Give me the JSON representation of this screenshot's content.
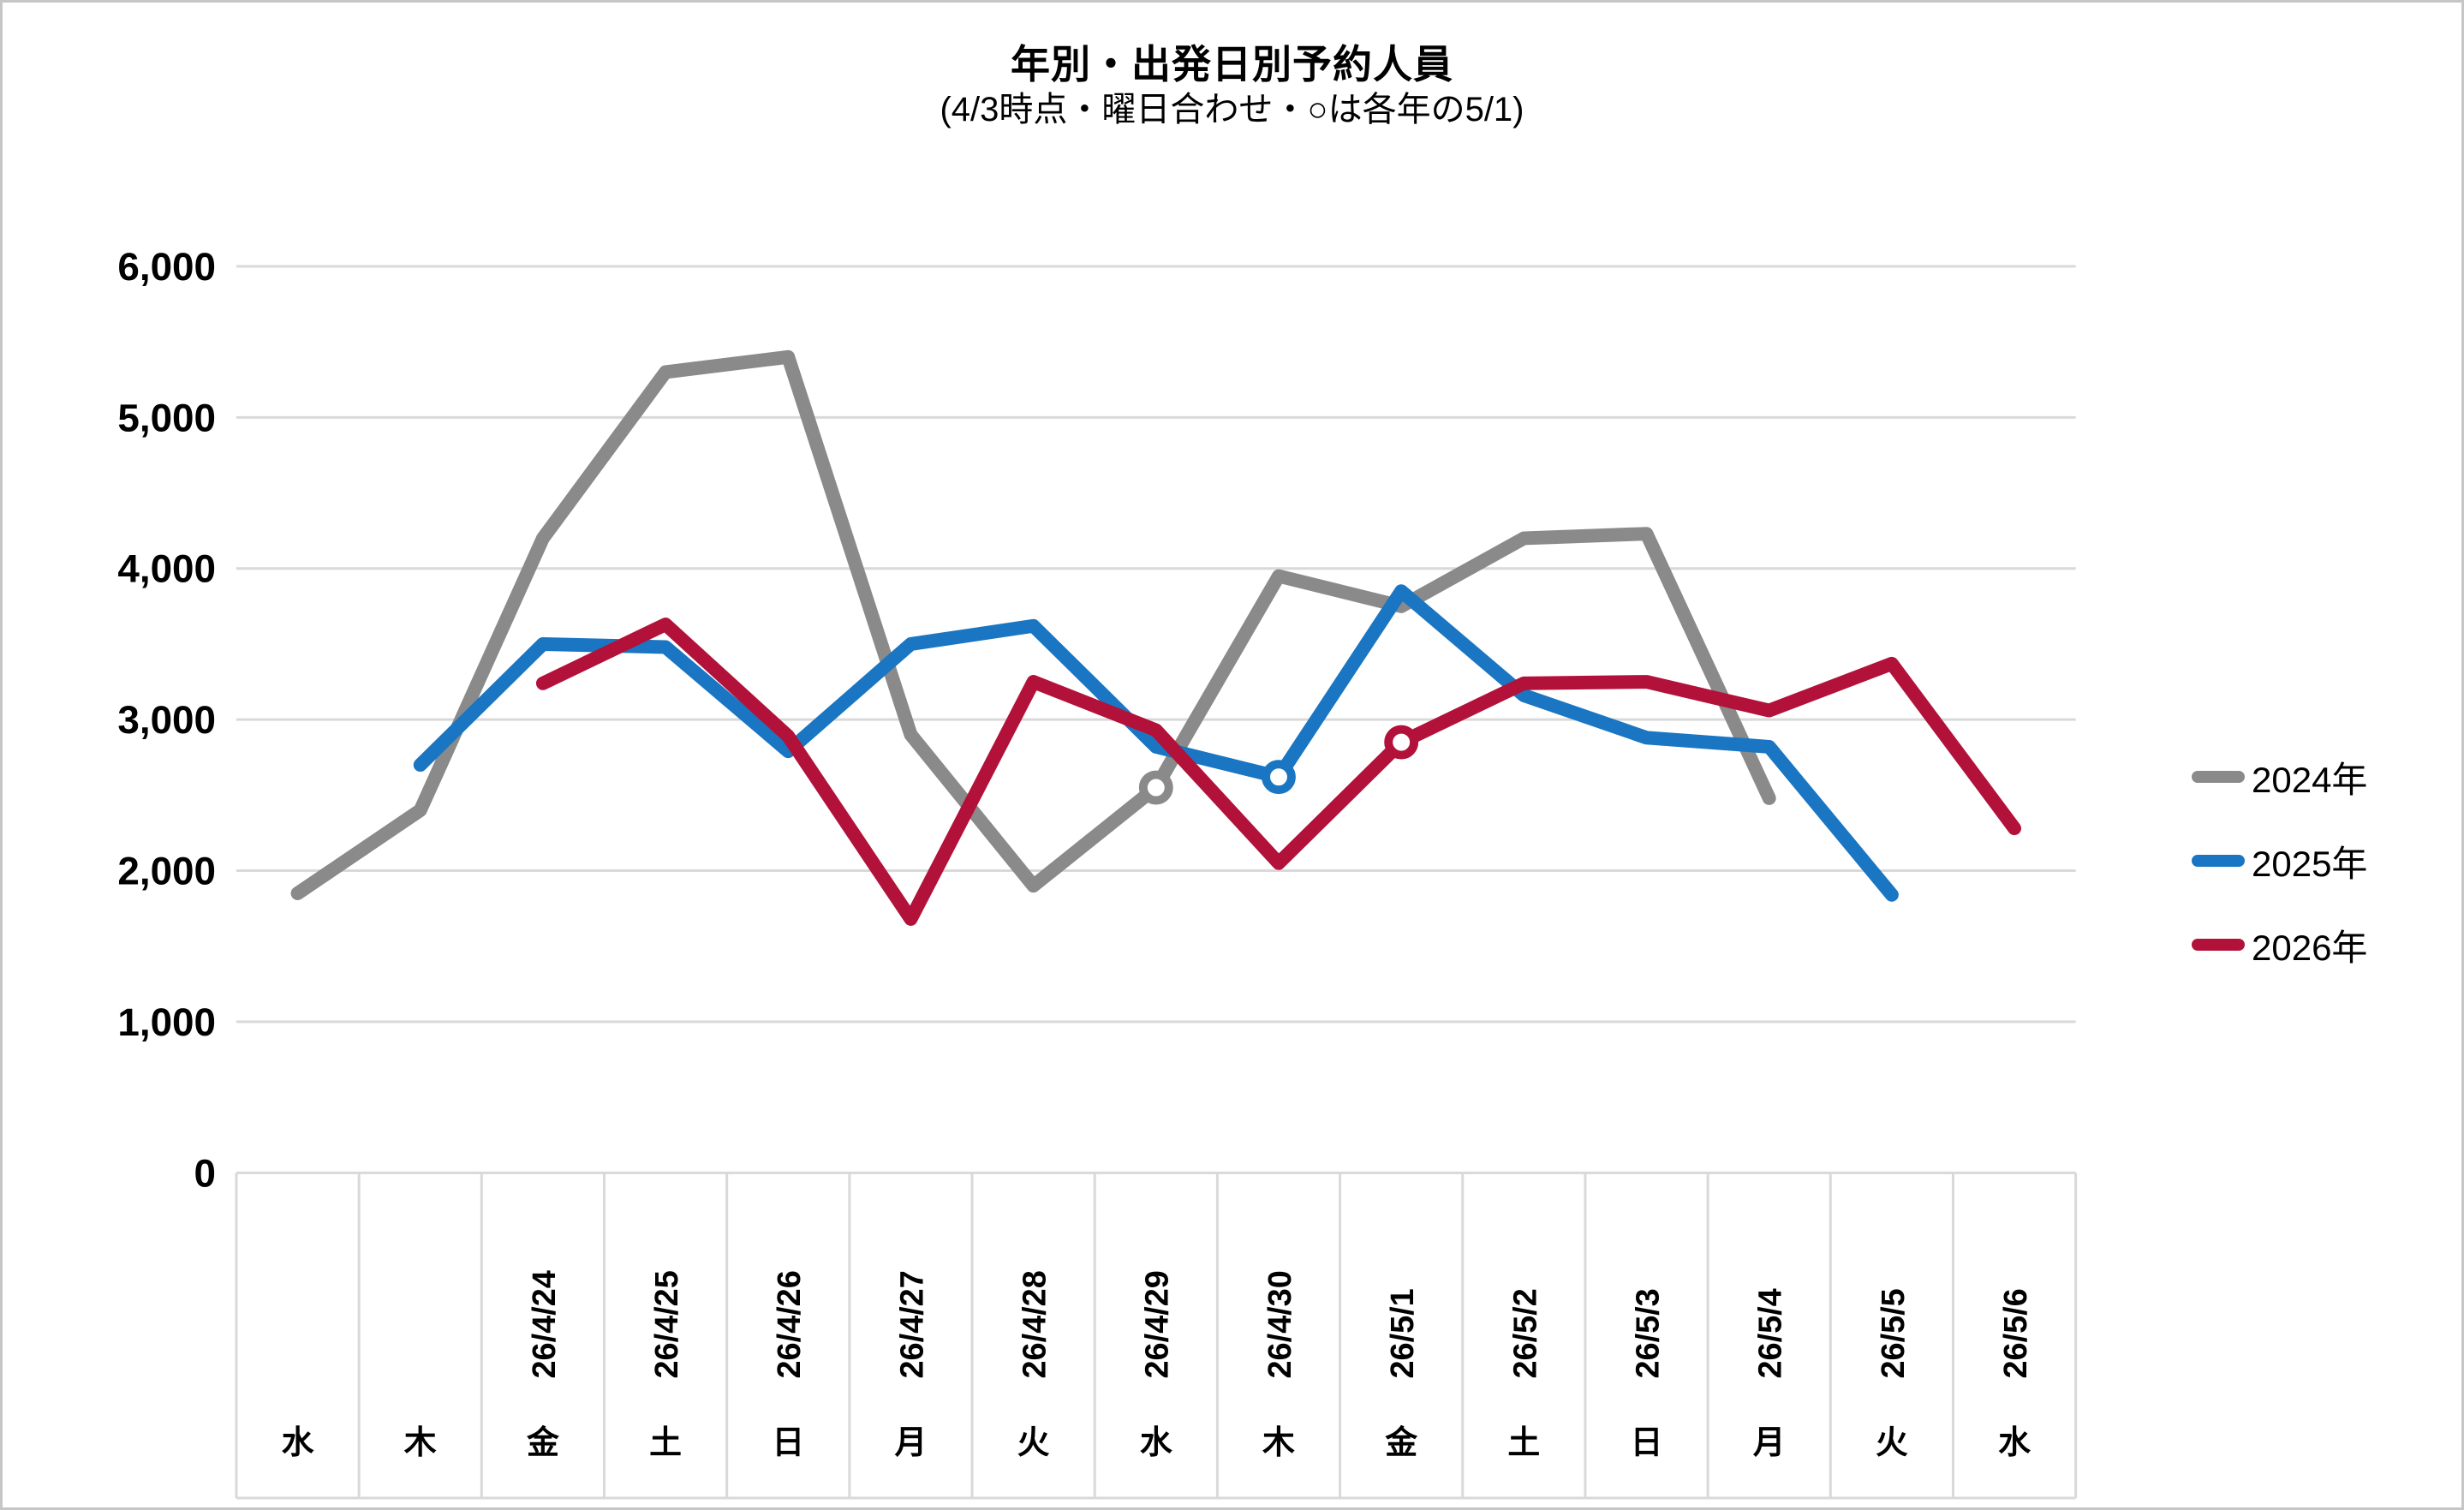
{
  "chart_data": {
    "type": "line",
    "title": "年別・出発日別予約人員",
    "subtitle": "(4/3時点・曜日合わせ・○は各年の5/1)",
    "marker_note": "○は各年の5/1 (open circle on each series)",
    "categories_weekday": [
      "水",
      "木",
      "金",
      "土",
      "日",
      "月",
      "火",
      "水",
      "木",
      "金",
      "土",
      "日",
      "月",
      "火",
      "水"
    ],
    "categories_date": [
      "",
      "",
      "26/4/24",
      "26/4/25",
      "26/4/26",
      "26/4/27",
      "26/4/28",
      "26/4/29",
      "26/4/30",
      "26/5/1",
      "26/5/2",
      "26/5/3",
      "26/5/4",
      "26/5/5",
      "26/5/6"
    ],
    "ylim": [
      0,
      6000
    ],
    "ytick_step": 1000,
    "ytick_labels": [
      "0",
      "1,000",
      "2,000",
      "3,000",
      "4,000",
      "5,000",
      "6,000"
    ],
    "grid": true,
    "legend_position": "right",
    "series": [
      {
        "name": "2024年",
        "color": "#8a8a8a",
        "values": [
          1850,
          2400,
          4200,
          5300,
          5400,
          2900,
          1900,
          2550,
          3950,
          3750,
          4200,
          4230,
          2480,
          null,
          null
        ],
        "marker_index": 7
      },
      {
        "name": "2025年",
        "color": "#1a76c2",
        "values": [
          null,
          2700,
          3500,
          3480,
          2790,
          3500,
          3620,
          2820,
          2620,
          3850,
          3160,
          2880,
          2820,
          1840,
          null
        ],
        "marker_index": 8
      },
      {
        "name": "2026年",
        "color": "#b2123a",
        "values": [
          null,
          null,
          3240,
          3630,
          2890,
          1680,
          3250,
          2930,
          2050,
          2850,
          3240,
          3250,
          3060,
          3370,
          2280
        ],
        "marker_index": 9
      }
    ],
    "grid_color": "#d9d9d9",
    "text_color": "#000000"
  }
}
